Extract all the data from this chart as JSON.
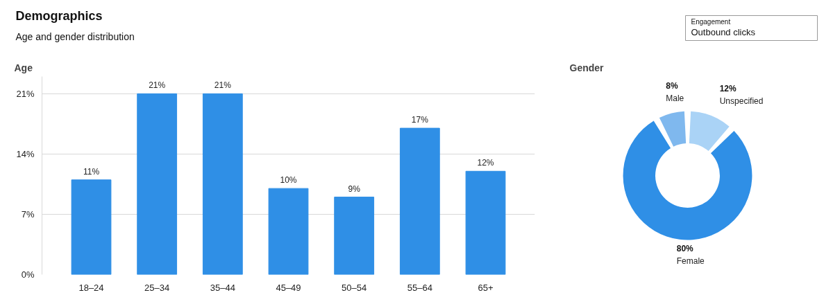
{
  "chart_data": [
    {
      "type": "other",
      "title": "Demographics",
      "subtitle": "Age and gender distribution",
      "annotations": [
        "Engagement",
        "Outbound clicks"
      ]
    },
    {
      "type": "bar",
      "title": "Age",
      "categories": [
        "18–24",
        "25–34",
        "35–44",
        "45–49",
        "50–54",
        "55–64",
        "65+"
      ],
      "values": [
        11,
        21,
        21,
        10,
        9,
        17,
        12
      ],
      "value_labels": [
        "11%",
        "21%",
        "21%",
        "10%",
        "9%",
        "17%",
        "12%"
      ],
      "color": "#2f8fe6",
      "ylim": [
        0,
        23
      ],
      "yticks": [
        {
          "value": 0,
          "label": "0%"
        },
        {
          "value": 7,
          "label": "7%"
        },
        {
          "value": 14,
          "label": "14%"
        },
        {
          "value": 21,
          "label": "21%"
        }
      ],
      "grid": "y"
    },
    {
      "type": "donut",
      "title": "Gender",
      "categories": [
        "Male",
        "Unspecified",
        "Female"
      ],
      "values": [
        8,
        12,
        80
      ],
      "value_labels": [
        "8%",
        "12%",
        "80%"
      ],
      "colors": [
        "#7fb8ee",
        "#aad3f6",
        "#2f8fe6"
      ]
    }
  ]
}
